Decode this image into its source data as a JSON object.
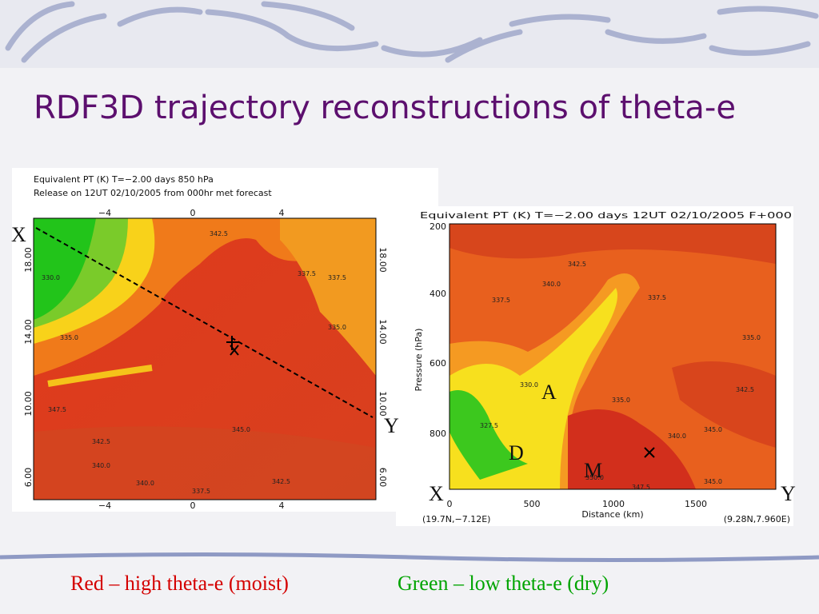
{
  "title": "RDF3D trajectory reconstructions of theta-e",
  "left_panel": {
    "header": [
      "Equivalent PT  (K)   T=−2.00 days   850 hPa",
      "Release on 12UT 02/10/2005 from 000hr met forecast"
    ],
    "x_ticks": [
      "−4",
      "0",
      "4"
    ],
    "y_ticks": [
      "18.00",
      "14.00",
      "10.00",
      "6.00"
    ],
    "contour_labels": [
      "342.5",
      "337.5",
      "330.0",
      "335.0",
      "337.5",
      "335.0",
      "347.5",
      "342.5",
      "345.0",
      "340.0",
      "340.0",
      "337.5",
      "342.5"
    ],
    "markers": [
      "X",
      "Y"
    ]
  },
  "right_panel": {
    "header": "Equivalent PT  (K)   T=−2.00 days   12UT 02/10/2005  F+000",
    "y_axis_label": "Pressure  (hPa)",
    "y_ticks": [
      "200",
      "400",
      "600",
      "800"
    ],
    "x_axis_label": "Distance  (km)",
    "x_ticks": [
      "0",
      "500",
      "1000",
      "1500"
    ],
    "left_end": "(19.7N,−7.12E)",
    "right_end": "(9.28N,7.960E)",
    "contour_labels": [
      "342.5",
      "340.0",
      "337.5",
      "335.0",
      "330.0",
      "327.5",
      "337.5",
      "335.0",
      "342.5",
      "345.0",
      "350.0",
      "347.5",
      "345.0",
      "340.0"
    ],
    "region_labels": [
      "A",
      "D",
      "M"
    ],
    "markers": [
      "X",
      "Y"
    ]
  },
  "caption": {
    "red": "Red – high theta-e (moist)",
    "green": "Green – low theta-e (dry)"
  }
}
